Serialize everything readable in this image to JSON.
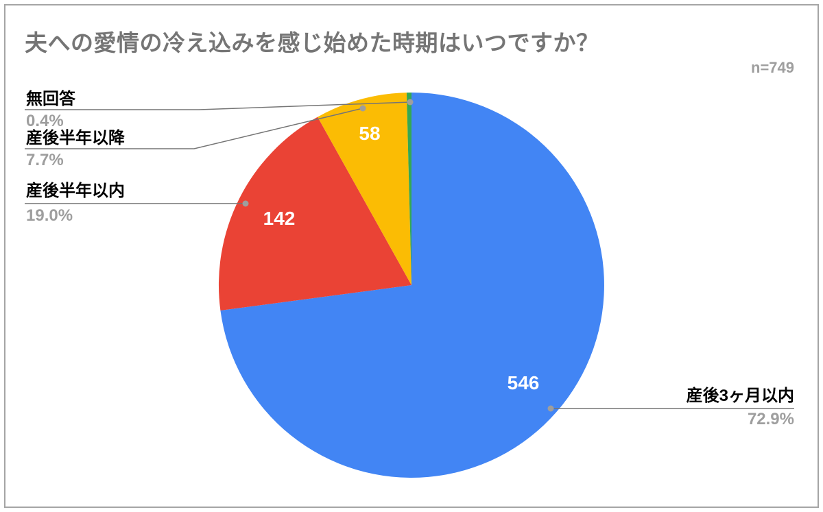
{
  "page": {
    "background": "#ffffff",
    "border_color": "#a5a5a5"
  },
  "chart_data": {
    "type": "pie",
    "title": "夫への愛情の冷え込みを感じ始めた時期はいつですか？",
    "sample_size_label": "n=749",
    "direction": "clockwise",
    "start_angle_deg": 0,
    "legend_position": "outside-callouts",
    "slices": [
      {
        "label": "産後3ヶ月以内",
        "value": 546,
        "value_label": "546",
        "pct": 72.9,
        "pct_label": "72.9%",
        "color": "#4285F4"
      },
      {
        "label": "産後半年以内",
        "value": 142,
        "value_label": "142",
        "pct": 19.0,
        "pct_label": "19.0%",
        "color": "#EA4335"
      },
      {
        "label": "産後半年以降",
        "value": 58,
        "value_label": "58",
        "pct": 7.7,
        "pct_label": "7.7%",
        "color": "#FBBC04"
      },
      {
        "label": "無回答",
        "value_label": "",
        "pct": 0.4,
        "pct_label": "0.4%",
        "color": "#34A853"
      }
    ],
    "text_colors": {
      "title": "#757575",
      "label": "#000000",
      "percent": "#9e9e9e",
      "sample_size": "#9e9e9e",
      "slice_value": "#ffffff",
      "leader_line": "#757575",
      "leader_dot": "#9e9e9e"
    }
  }
}
